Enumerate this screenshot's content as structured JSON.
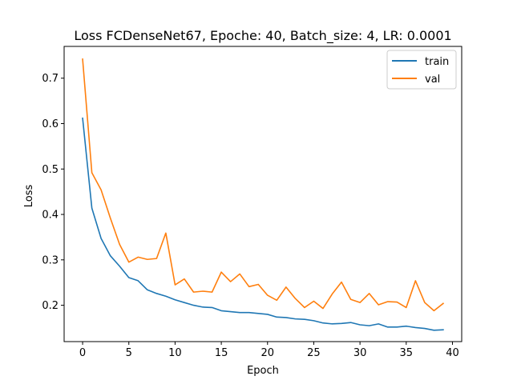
{
  "chart_data": {
    "type": "line",
    "title": "Loss FCDenseNet67, Epoche: 40, Batch_size: 4, LR: 0.0001",
    "xlabel": "Epoch",
    "ylabel": "Loss",
    "xlim": [
      -2.0,
      41.0
    ],
    "ylim": [
      0.12,
      0.77
    ],
    "xticks": [
      0,
      5,
      10,
      15,
      20,
      25,
      30,
      35,
      40
    ],
    "yticks": [
      0.2,
      0.3,
      0.4,
      0.5,
      0.6,
      0.7
    ],
    "x": [
      0,
      1,
      2,
      3,
      4,
      5,
      6,
      7,
      8,
      9,
      10,
      11,
      12,
      13,
      14,
      15,
      16,
      17,
      18,
      19,
      20,
      21,
      22,
      23,
      24,
      25,
      26,
      27,
      28,
      29,
      30,
      31,
      32,
      33,
      34,
      35,
      36,
      37,
      38,
      39
    ],
    "series": [
      {
        "name": "train",
        "color": "#1f77b4",
        "values": [
          0.612,
          0.414,
          0.347,
          0.309,
          0.286,
          0.261,
          0.254,
          0.234,
          0.226,
          0.22,
          0.212,
          0.206,
          0.2,
          0.196,
          0.195,
          0.188,
          0.186,
          0.184,
          0.184,
          0.182,
          0.18,
          0.174,
          0.173,
          0.17,
          0.169,
          0.166,
          0.161,
          0.159,
          0.16,
          0.162,
          0.157,
          0.155,
          0.159,
          0.152,
          0.152,
          0.154,
          0.151,
          0.149,
          0.145,
          0.146
        ]
      },
      {
        "name": "val",
        "color": "#ff7f0e",
        "values": [
          0.742,
          0.492,
          0.454,
          0.392,
          0.334,
          0.295,
          0.306,
          0.301,
          0.303,
          0.359,
          0.245,
          0.258,
          0.229,
          0.231,
          0.229,
          0.273,
          0.252,
          0.269,
          0.241,
          0.246,
          0.222,
          0.211,
          0.24,
          0.215,
          0.195,
          0.209,
          0.193,
          0.225,
          0.251,
          0.213,
          0.206,
          0.226,
          0.201,
          0.208,
          0.207,
          0.195,
          0.254,
          0.206,
          0.188,
          0.204
        ]
      }
    ],
    "legend": {
      "position": "top-right",
      "entries": [
        "train",
        "val"
      ]
    },
    "grid": false
  }
}
